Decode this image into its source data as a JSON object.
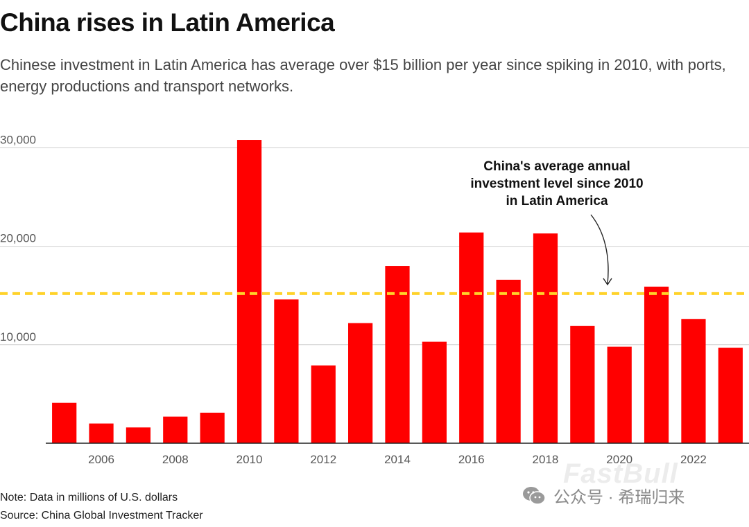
{
  "header": {
    "title": "China rises in Latin America",
    "subtitle": "Chinese investment in Latin America has average over $15 billion per year since spiking in 2010, with ports, energy productions and transport networks."
  },
  "chart_data": {
    "type": "bar",
    "categories": [
      "2005",
      "2006",
      "2007",
      "2008",
      "2009",
      "2010",
      "2011",
      "2012",
      "2013",
      "2014",
      "2015",
      "2016",
      "2017",
      "2018",
      "2019",
      "2020",
      "2021",
      "2022",
      "2023"
    ],
    "values": [
      4100,
      2000,
      1600,
      2700,
      3100,
      30800,
      14600,
      7900,
      12200,
      18000,
      10300,
      21400,
      16600,
      21300,
      11900,
      9800,
      15900,
      12600,
      9700
    ],
    "series_color": "#ff0000",
    "average_line": {
      "value": 15200,
      "color": "#ffd22a"
    },
    "ylim": [
      0,
      33000
    ],
    "yticks": [
      10000,
      20000,
      30000
    ],
    "ytick_labels": [
      "10,000",
      "20,000",
      "30,000"
    ],
    "xtick_labels": [
      "2006",
      "2008",
      "2010",
      "2012",
      "2014",
      "2016",
      "2018",
      "2020",
      "2022"
    ],
    "xlabel": "",
    "ylabel": "",
    "annotation": [
      "China's average annual",
      "investment level since 2010",
      "in Latin America"
    ]
  },
  "footer": {
    "note": "Note: Data in millions of U.S. dollars",
    "source": "Source: China Global Investment Tracker"
  },
  "branding": {
    "wechat_account": "公众号 · 希瑞归来",
    "watermark": "FastBull",
    "wechat_icon": "wechat-icon"
  }
}
